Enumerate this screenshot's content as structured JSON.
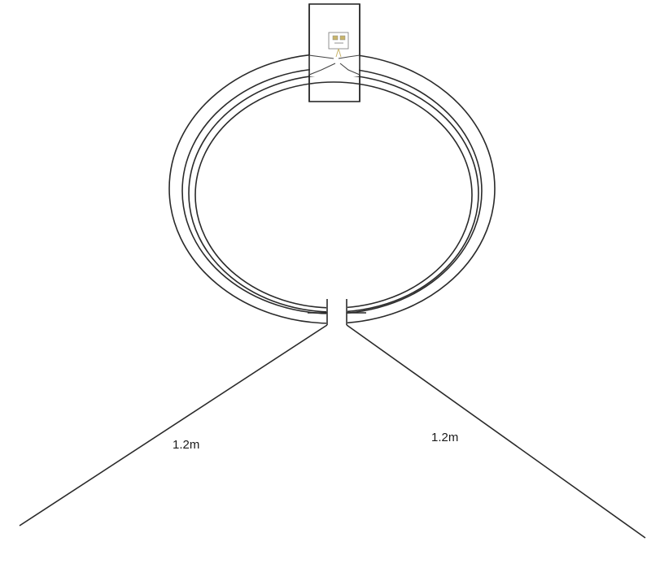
{
  "diagram": {
    "labels": {
      "left_wire_length": "1.2m",
      "right_wire_length": "1.2m"
    },
    "colors": {
      "line": "#2a2a2a",
      "background": "#ffffff",
      "component_accent": "#c8b46a"
    }
  }
}
